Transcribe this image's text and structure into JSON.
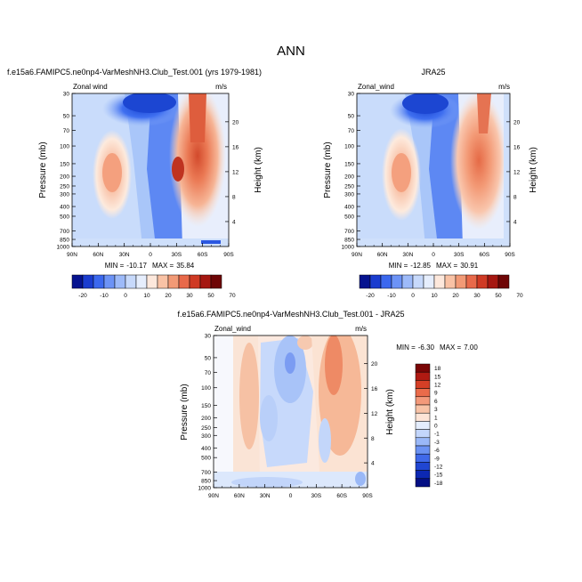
{
  "figure_title": "ANN",
  "chart_data": [
    {
      "type": "heatmap",
      "title": "f.e15a6.FAMIPC5.ne0np4-VarMeshNH3.Club_Test.001 (yrs 1979-1981)",
      "left_string": "Zonal wind",
      "right_string": "m/s",
      "xlabel": "",
      "ylabel": "Pressure (mb)",
      "ylabel_right": "Height (km)",
      "x_ticks": [
        "90N",
        "60N",
        "30N",
        "0",
        "30S",
        "60S",
        "90S"
      ],
      "y_ticks": [
        "30",
        "50",
        "70",
        "100",
        "150",
        "200",
        "250",
        "300",
        "400",
        "500",
        "700",
        "850",
        "1000"
      ],
      "y_ticks_right": [
        "4",
        "8",
        "12",
        "16",
        "20"
      ],
      "stats": {
        "min_label": "MIN =",
        "min": "-10.17",
        "max_label": "MAX =",
        "max": "35.84"
      },
      "colorbar": {
        "levels": [
          "-20",
          "-10",
          "0",
          "10",
          "20",
          "30",
          "50",
          "70"
        ]
      }
    },
    {
      "type": "heatmap",
      "title": "JRA25",
      "left_string": "Zonal_wind",
      "right_string": "m/s",
      "xlabel": "",
      "ylabel": "Pressure (mb)",
      "ylabel_right": "Height (km)",
      "x_ticks": [
        "90N",
        "60N",
        "30N",
        "0",
        "30S",
        "60S",
        "90S"
      ],
      "y_ticks": [
        "30",
        "50",
        "70",
        "100",
        "150",
        "200",
        "250",
        "300",
        "400",
        "500",
        "700",
        "850",
        "1000"
      ],
      "y_ticks_right": [
        "4",
        "8",
        "12",
        "16",
        "20"
      ],
      "stats": {
        "min_label": "MIN =",
        "min": "-12.85",
        "max_label": "MAX =",
        "max": "30.91"
      },
      "colorbar": {
        "levels": [
          "-20",
          "-10",
          "0",
          "10",
          "20",
          "30",
          "50",
          "70"
        ]
      }
    },
    {
      "type": "heatmap",
      "title": "f.e15a6.FAMIPC5.ne0np4-VarMeshNH3.Club_Test.001 - JRA25",
      "left_string": "Zonal_wind",
      "right_string": "m/s",
      "xlabel": "",
      "ylabel": "Pressure (mb)",
      "ylabel_right": "Height (km)",
      "x_ticks": [
        "90N",
        "60N",
        "30N",
        "0",
        "30S",
        "60S",
        "90S"
      ],
      "y_ticks": [
        "30",
        "50",
        "70",
        "100",
        "150",
        "200",
        "250",
        "300",
        "400",
        "500",
        "700",
        "850",
        "1000"
      ],
      "y_ticks_right": [
        "4",
        "8",
        "12",
        "16",
        "20"
      ],
      "stats": {
        "min_label": "MIN =",
        "min": "-6.30",
        "max_label": "MAX =",
        "max": "7.00"
      },
      "colorbar": {
        "levels": [
          "18",
          "15",
          "12",
          "9",
          "6",
          "3",
          "1",
          "0",
          "-1",
          "-3",
          "-6",
          "-9",
          "-12",
          "-15",
          "-18"
        ]
      }
    }
  ]
}
